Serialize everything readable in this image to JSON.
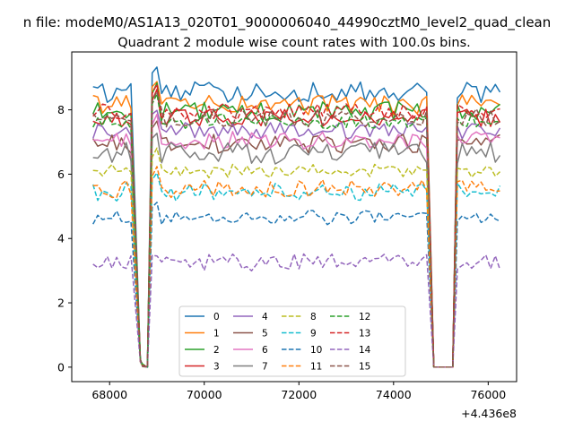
{
  "suptitle": "n file: modeM0/AS1A13_020T01_9000006040_44990cztM0_level2_quad_clean",
  "chart_data": {
    "type": "line",
    "title": "Quadrant 2 module wise count rates with 100.0s bins.",
    "xlabel": "",
    "ylabel": "",
    "x_offset_label": "+4.436e8",
    "xlim": [
      67200,
      76600
    ],
    "ylim": [
      -0.45,
      9.8
    ],
    "xticks": [
      68000,
      70000,
      72000,
      74000,
      76000
    ],
    "xtick_labels": [
      "68000",
      "70000",
      "72000",
      "74000",
      "76000"
    ],
    "yticks": [
      0,
      2,
      4,
      6,
      8
    ],
    "ytick_labels": [
      "0",
      "2",
      "4",
      "6",
      "8"
    ],
    "grid": false,
    "legend_position": "lower center",
    "legend_columns": 4,
    "x_start": 67650,
    "x_step": 100,
    "dip1": [
      [
        68650,
        0.2
      ],
      [
        68700,
        0.05
      ],
      [
        68800,
        0.0
      ]
    ],
    "gap": [
      74850,
      75250
    ],
    "series": [
      {
        "name": "0",
        "color": "#1f77b4",
        "dash": "solid",
        "base": 8.55,
        "amp": 0.32
      },
      {
        "name": "1",
        "color": "#ff7f0e",
        "dash": "solid",
        "base": 8.15,
        "amp": 0.32
      },
      {
        "name": "2",
        "color": "#2ca02c",
        "dash": "solid",
        "base": 7.95,
        "amp": 0.3
      },
      {
        "name": "3",
        "color": "#d62728",
        "dash": "solid",
        "base": 7.75,
        "amp": 0.28
      },
      {
        "name": "4",
        "color": "#9467bd",
        "dash": "solid",
        "base": 7.35,
        "amp": 0.25
      },
      {
        "name": "5",
        "color": "#8c564b",
        "dash": "solid",
        "base": 6.95,
        "amp": 0.3
      },
      {
        "name": "6",
        "color": "#e377c2",
        "dash": "solid",
        "base": 7.05,
        "amp": 0.28
      },
      {
        "name": "7",
        "color": "#7f7f7f",
        "dash": "solid",
        "base": 6.65,
        "amp": 0.35
      },
      {
        "name": "8",
        "color": "#bcbd22",
        "dash": "dashed",
        "base": 6.1,
        "amp": 0.22
      },
      {
        "name": "9",
        "color": "#17becf",
        "dash": "dashed",
        "base": 5.45,
        "amp": 0.28
      },
      {
        "name": "10",
        "color": "#1f77b4",
        "dash": "dashed",
        "base": 4.65,
        "amp": 0.22
      },
      {
        "name": "11",
        "color": "#ff7f0e",
        "dash": "dashed",
        "base": 5.55,
        "amp": 0.28
      },
      {
        "name": "12",
        "color": "#2ca02c",
        "dash": "dashed",
        "base": 7.65,
        "amp": 0.25
      },
      {
        "name": "13",
        "color": "#d62728",
        "dash": "dashed",
        "base": 7.95,
        "amp": 0.25
      },
      {
        "name": "14",
        "color": "#9467bd",
        "dash": "dashed",
        "base": 3.25,
        "amp": 0.28
      },
      {
        "name": "15",
        "color": "#8c564b",
        "dash": "dashed",
        "base": 7.75,
        "amp": 0.28
      }
    ]
  }
}
